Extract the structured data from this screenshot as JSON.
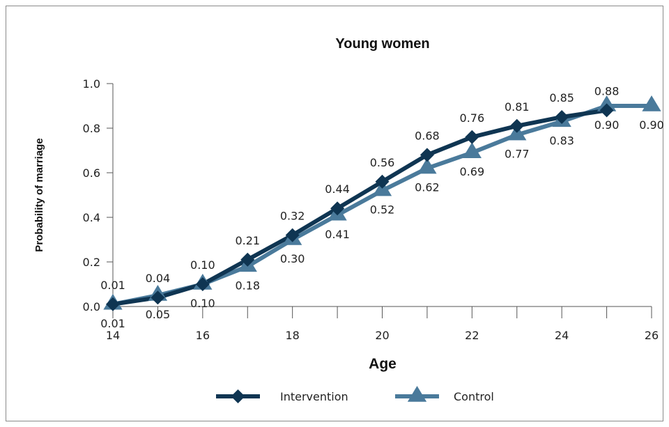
{
  "chart_data": {
    "type": "line",
    "title": "Young women",
    "xlabel": "Age",
    "ylabel": "Probability of marriage",
    "x": [
      14,
      15,
      16,
      17,
      18,
      19,
      20,
      21,
      22,
      23,
      24,
      25,
      26
    ],
    "xlim": [
      14,
      26
    ],
    "ylim": [
      0,
      1.0
    ],
    "xticks": [
      "14",
      "16",
      "18",
      "20",
      "22",
      "24",
      "26"
    ],
    "yticks": [
      "0.0",
      "0.2",
      "0.4",
      "0.6",
      "0.8",
      "1.0"
    ],
    "legend_position": "bottom",
    "series": [
      {
        "name": "Intervention",
        "color": "#0f3552",
        "marker": "diamond",
        "values": [
          0.01,
          0.04,
          0.1,
          0.21,
          0.32,
          0.44,
          0.56,
          0.68,
          0.76,
          0.81,
          0.85,
          0.88,
          null
        ],
        "labels": [
          "0.01",
          "0.04",
          "0.10",
          "0.21",
          "0.32",
          "0.44",
          "0.56",
          "0.68",
          "0.76",
          "0.81",
          "0.85",
          "0.88",
          null
        ]
      },
      {
        "name": "Control",
        "color": "#4a7a9b",
        "marker": "triangle",
        "values": [
          0.01,
          0.05,
          0.1,
          0.18,
          0.3,
          0.41,
          0.52,
          0.62,
          0.69,
          0.77,
          0.83,
          0.9,
          0.9
        ],
        "labels": [
          "0.01",
          "0.05",
          "0.10",
          "0.18",
          "0.30",
          "0.41",
          "0.52",
          "0.62",
          "0.69",
          "0.77",
          "0.83",
          "0.90",
          "0.90"
        ]
      }
    ]
  }
}
